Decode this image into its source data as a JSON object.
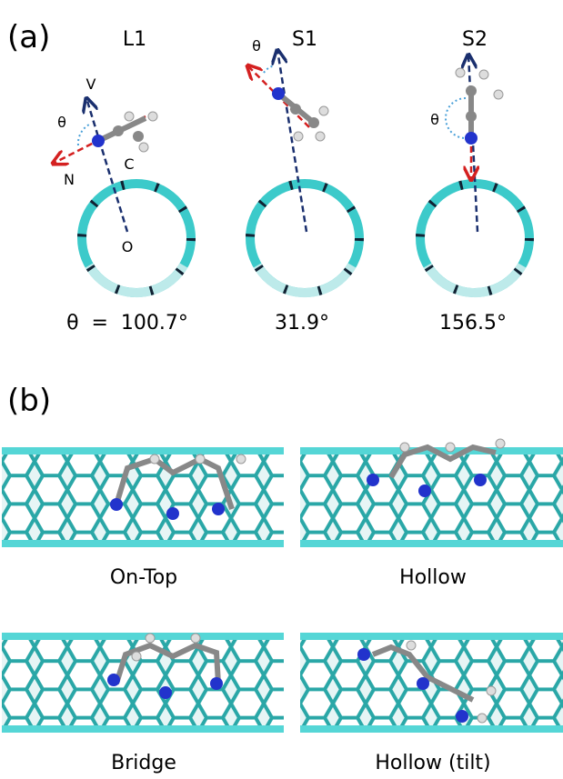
{
  "panel_a": {
    "label": "(a)",
    "structures": [
      {
        "name": "L1",
        "angle": "θ  =  100.7°"
      },
      {
        "name": "S1",
        "angle": "31.9°"
      },
      {
        "name": "S2",
        "angle": "156.5°"
      }
    ],
    "annotations": {
      "theta_l1": "θ",
      "v": "V",
      "n": "N",
      "c": "C",
      "o": "O",
      "theta_s1": "θ",
      "theta_s2": "θ"
    }
  },
  "panel_b": {
    "label": "(b)",
    "configurations": [
      "On-Top",
      "Hollow",
      "Bridge",
      "Hollow (tilt)"
    ]
  }
}
